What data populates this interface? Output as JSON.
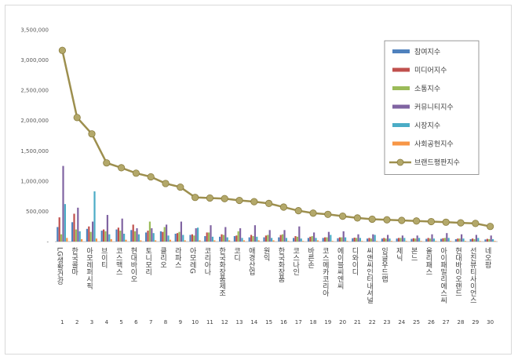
{
  "chart_data": {
    "type": "bar",
    "title": "",
    "xlabel": "",
    "ylabel": "",
    "ylim": [
      0,
      3500000
    ],
    "yticks": [
      0,
      500000,
      1000000,
      1500000,
      2000000,
      2500000,
      3000000,
      3500000
    ],
    "ytick_labels": [
      "-",
      "500,000",
      "1,000,000",
      "1,500,000",
      "2,000,000",
      "2,500,000",
      "3,000,000",
      "3,500,000"
    ],
    "grid": false,
    "legend_position": "top-right",
    "categories": [
      "LG생활건강",
      "한국콜마",
      "아모레퍼시픽",
      "브이티",
      "코스맥스",
      "현대바이오",
      "토니모리",
      "클리오",
      "라파스",
      "아모레G",
      "코리아나",
      "한국화장품제조",
      "코디",
      "애경산업",
      "원익",
      "한국화장품",
      "코스나인",
      "바른손",
      "코스메카코리아",
      "에이블씨엔씨",
      "디와이디",
      "씨앤씨인터내셔널",
      "잉글우드랩",
      "제닉",
      "본느",
      "올리패스",
      "아이패밀리에스씨",
      "현대바이오랜드",
      "선진뷰티사이언스",
      "네오팜"
    ],
    "indices": [
      "1",
      "2",
      "3",
      "4",
      "5",
      "6",
      "7",
      "8",
      "9",
      "10",
      "11",
      "12",
      "13",
      "14",
      "15",
      "16",
      "17",
      "18",
      "19",
      "20",
      "21",
      "22",
      "23",
      "24",
      "25",
      "26",
      "27",
      "28",
      "29",
      "30"
    ],
    "series": [
      {
        "name": "참여지수",
        "color": "#4f81bd",
        "values": [
          240000,
          320000,
          210000,
          180000,
          200000,
          190000,
          150000,
          170000,
          130000,
          110000,
          90000,
          80000,
          90000,
          70000,
          70000,
          70000,
          60000,
          60000,
          60000,
          55000,
          55000,
          50000,
          50000,
          50000,
          45000,
          45000,
          45000,
          40000,
          40000,
          35000
        ]
      },
      {
        "name": "미디어지수",
        "color": "#c0504d",
        "values": [
          400000,
          460000,
          250000,
          200000,
          230000,
          280000,
          180000,
          160000,
          140000,
          120000,
          150000,
          120000,
          100000,
          110000,
          100000,
          110000,
          90000,
          80000,
          70000,
          70000,
          65000,
          60000,
          60000,
          60000,
          55000,
          60000,
          55000,
          50000,
          50000,
          45000
        ]
      },
      {
        "name": "소통지수",
        "color": "#9bbb59",
        "values": [
          120000,
          200000,
          160000,
          170000,
          180000,
          170000,
          330000,
          240000,
          160000,
          100000,
          150000,
          110000,
          170000,
          90000,
          110000,
          120000,
          80000,
          90000,
          70000,
          70000,
          60000,
          50000,
          50000,
          60000,
          50000,
          50000,
          60000,
          50000,
          40000,
          40000
        ]
      },
      {
        "name": "커뮤니티지수",
        "color": "#8064a2",
        "values": [
          1250000,
          560000,
          330000,
          440000,
          380000,
          220000,
          220000,
          280000,
          330000,
          220000,
          270000,
          240000,
          220000,
          270000,
          190000,
          190000,
          250000,
          150000,
          160000,
          170000,
          120000,
          120000,
          110000,
          100000,
          100000,
          120000,
          140000,
          120000,
          110000,
          100000
        ]
      },
      {
        "name": "시장지수",
        "color": "#4bacc6",
        "values": [
          620000,
          170000,
          830000,
          120000,
          130000,
          120000,
          140000,
          100000,
          110000,
          230000,
          80000,
          70000,
          60000,
          80000,
          60000,
          60000,
          50000,
          60000,
          110000,
          70000,
          60000,
          110000,
          50000,
          60000,
          60000,
          50000,
          60000,
          50000,
          60000,
          40000
        ]
      },
      {
        "name": "사회공헌지수",
        "color": "#f79646",
        "values": [
          60000,
          40000,
          50000,
          40000,
          30000,
          20000,
          20000,
          30000,
          20000,
          20000,
          20000,
          20000,
          20000,
          20000,
          20000,
          10000,
          10000,
          20000,
          10000,
          10000,
          10000,
          10000,
          10000,
          10000,
          10000,
          10000,
          10000,
          10000,
          10000,
          10000
        ]
      }
    ],
    "line_series": {
      "name": "브랜드평판지수",
      "color": "#9d8f4e",
      "values": [
        3160000,
        2050000,
        1780000,
        1300000,
        1220000,
        1130000,
        1070000,
        960000,
        900000,
        730000,
        720000,
        710000,
        680000,
        660000,
        630000,
        570000,
        510000,
        470000,
        450000,
        420000,
        390000,
        370000,
        360000,
        350000,
        340000,
        330000,
        320000,
        310000,
        300000,
        250000
      ]
    }
  }
}
